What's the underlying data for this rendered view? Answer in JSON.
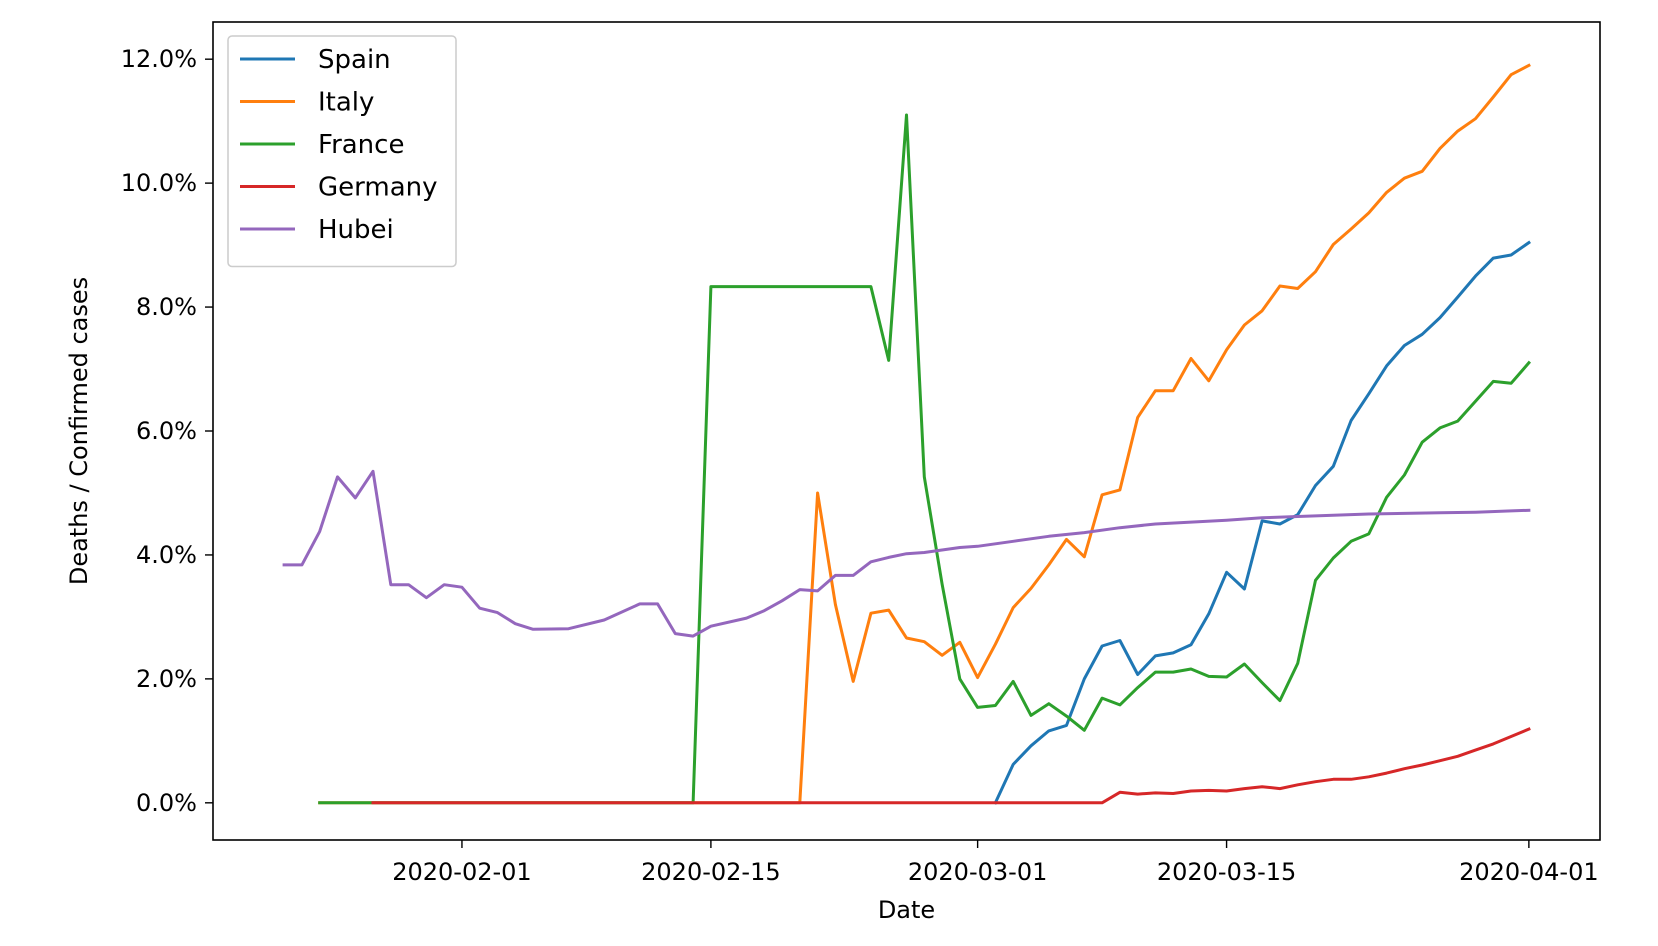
{
  "chart_data": {
    "type": "line",
    "xlabel": "Date",
    "ylabel": "Deaths / Confirmed cases",
    "x_ticks": [
      "2020-02-01",
      "2020-02-15",
      "2020-03-01",
      "2020-03-15",
      "2020-04-01"
    ],
    "y_ticks": [
      "0.0%",
      "2.0%",
      "4.0%",
      "6.0%",
      "8.0%",
      "10.0%",
      "12.0%"
    ],
    "xlim": [
      "2020-01-18",
      "2020-04-05"
    ],
    "ylim": [
      -0.6,
      12.6
    ],
    "legend_position": "top-left",
    "grid": false,
    "series": [
      {
        "name": "Spain",
        "color": "#1f77b4",
        "points": [
          [
            "2020-03-02",
            0.0
          ],
          [
            "2020-03-03",
            0.62
          ],
          [
            "2020-03-04",
            0.92
          ],
          [
            "2020-03-05",
            1.16
          ],
          [
            "2020-03-06",
            1.25
          ],
          [
            "2020-03-07",
            2.0
          ],
          [
            "2020-03-08",
            2.53
          ],
          [
            "2020-03-09",
            2.62
          ],
          [
            "2020-03-10",
            2.07
          ],
          [
            "2020-03-11",
            2.37
          ],
          [
            "2020-03-12",
            2.42
          ],
          [
            "2020-03-13",
            2.55
          ],
          [
            "2020-03-14",
            3.05
          ],
          [
            "2020-03-15",
            3.72
          ],
          [
            "2020-03-16",
            3.45
          ],
          [
            "2020-03-17",
            4.55
          ],
          [
            "2020-03-18",
            4.5
          ],
          [
            "2020-03-19",
            4.65
          ],
          [
            "2020-03-20",
            5.12
          ],
          [
            "2020-03-21",
            5.43
          ],
          [
            "2020-03-22",
            6.17
          ],
          [
            "2020-03-23",
            6.6
          ],
          [
            "2020-03-24",
            7.05
          ],
          [
            "2020-03-25",
            7.38
          ],
          [
            "2020-03-26",
            7.56
          ],
          [
            "2020-03-27",
            7.83
          ],
          [
            "2020-03-28",
            8.16
          ],
          [
            "2020-03-29",
            8.5
          ],
          [
            "2020-03-30",
            8.79
          ],
          [
            "2020-03-31",
            8.84
          ],
          [
            "2020-04-01",
            9.04
          ]
        ]
      },
      {
        "name": "Italy",
        "color": "#ff7f0e",
        "points": [
          [
            "2020-01-24",
            0.0
          ],
          [
            "2020-01-26",
            0.0
          ],
          [
            "2020-01-28",
            0.0
          ],
          [
            "2020-01-30",
            0.0
          ],
          [
            "2020-02-01",
            0.0
          ],
          [
            "2020-02-03",
            0.0
          ],
          [
            "2020-02-05",
            0.0
          ],
          [
            "2020-02-07",
            0.0
          ],
          [
            "2020-02-09",
            0.0
          ],
          [
            "2020-02-11",
            0.0
          ],
          [
            "2020-02-13",
            0.0
          ],
          [
            "2020-02-15",
            0.0
          ],
          [
            "2020-02-17",
            0.0
          ],
          [
            "2020-02-19",
            0.0
          ],
          [
            "2020-02-20",
            0.0
          ],
          [
            "2020-02-21",
            5.0
          ],
          [
            "2020-02-22",
            3.2
          ],
          [
            "2020-02-23",
            1.96
          ],
          [
            "2020-02-24",
            3.06
          ],
          [
            "2020-02-25",
            3.11
          ],
          [
            "2020-02-26",
            2.66
          ],
          [
            "2020-02-27",
            2.6
          ],
          [
            "2020-02-28",
            2.38
          ],
          [
            "2020-02-29",
            2.59
          ],
          [
            "2020-03-01",
            2.02
          ],
          [
            "2020-03-02",
            2.56
          ],
          [
            "2020-03-03",
            3.15
          ],
          [
            "2020-03-04",
            3.46
          ],
          [
            "2020-03-05",
            3.84
          ],
          [
            "2020-03-06",
            4.25
          ],
          [
            "2020-03-07",
            3.97
          ],
          [
            "2020-03-08",
            4.97
          ],
          [
            "2020-03-09",
            5.05
          ],
          [
            "2020-03-10",
            6.22
          ],
          [
            "2020-03-11",
            6.65
          ],
          [
            "2020-03-12",
            6.65
          ],
          [
            "2020-03-13",
            7.17
          ],
          [
            "2020-03-14",
            6.81
          ],
          [
            "2020-03-15",
            7.31
          ],
          [
            "2020-03-16",
            7.71
          ],
          [
            "2020-03-17",
            7.94
          ],
          [
            "2020-03-18",
            8.34
          ],
          [
            "2020-03-19",
            8.3
          ],
          [
            "2020-03-20",
            8.57
          ],
          [
            "2020-03-21",
            9.01
          ],
          [
            "2020-03-22",
            9.26
          ],
          [
            "2020-03-23",
            9.52
          ],
          [
            "2020-03-24",
            9.85
          ],
          [
            "2020-03-25",
            10.08
          ],
          [
            "2020-03-26",
            10.19
          ],
          [
            "2020-03-27",
            10.56
          ],
          [
            "2020-03-28",
            10.84
          ],
          [
            "2020-03-29",
            11.04
          ],
          [
            "2020-03-30",
            11.39
          ],
          [
            "2020-03-31",
            11.75
          ],
          [
            "2020-04-01",
            11.9
          ]
        ]
      },
      {
        "name": "France",
        "color": "#2ca02c",
        "points": [
          [
            "2020-01-24",
            0.0
          ],
          [
            "2020-01-26",
            0.0
          ],
          [
            "2020-01-28",
            0.0
          ],
          [
            "2020-01-30",
            0.0
          ],
          [
            "2020-02-01",
            0.0
          ],
          [
            "2020-02-03",
            0.0
          ],
          [
            "2020-02-05",
            0.0
          ],
          [
            "2020-02-07",
            0.0
          ],
          [
            "2020-02-09",
            0.0
          ],
          [
            "2020-02-11",
            0.0
          ],
          [
            "2020-02-13",
            0.0
          ],
          [
            "2020-02-14",
            0.0
          ],
          [
            "2020-02-15",
            8.33
          ],
          [
            "2020-02-17",
            8.33
          ],
          [
            "2020-02-19",
            8.33
          ],
          [
            "2020-02-21",
            8.33
          ],
          [
            "2020-02-23",
            8.33
          ],
          [
            "2020-02-24",
            8.33
          ],
          [
            "2020-02-25",
            7.14
          ],
          [
            "2020-02-26",
            11.1
          ],
          [
            "2020-02-27",
            5.26
          ],
          [
            "2020-02-28",
            3.53
          ],
          [
            "2020-02-29",
            2.0
          ],
          [
            "2020-03-01",
            1.54
          ],
          [
            "2020-03-02",
            1.57
          ],
          [
            "2020-03-03",
            1.96
          ],
          [
            "2020-03-04",
            1.41
          ],
          [
            "2020-03-05",
            1.6
          ],
          [
            "2020-03-06",
            1.4
          ],
          [
            "2020-03-07",
            1.17
          ],
          [
            "2020-03-08",
            1.69
          ],
          [
            "2020-03-09",
            1.58
          ],
          [
            "2020-03-10",
            1.86
          ],
          [
            "2020-03-11",
            2.11
          ],
          [
            "2020-03-12",
            2.11
          ],
          [
            "2020-03-13",
            2.16
          ],
          [
            "2020-03-14",
            2.04
          ],
          [
            "2020-03-15",
            2.03
          ],
          [
            "2020-03-16",
            2.24
          ],
          [
            "2020-03-17",
            1.94
          ],
          [
            "2020-03-18",
            1.65
          ],
          [
            "2020-03-19",
            2.25
          ],
          [
            "2020-03-20",
            3.59
          ],
          [
            "2020-03-21",
            3.95
          ],
          [
            "2020-03-22",
            4.22
          ],
          [
            "2020-03-23",
            4.34
          ],
          [
            "2020-03-24",
            4.93
          ],
          [
            "2020-03-25",
            5.29
          ],
          [
            "2020-03-26",
            5.82
          ],
          [
            "2020-03-27",
            6.05
          ],
          [
            "2020-03-28",
            6.16
          ],
          [
            "2020-03-29",
            6.48
          ],
          [
            "2020-03-30",
            6.8
          ],
          [
            "2020-03-31",
            6.77
          ],
          [
            "2020-04-01",
            7.1
          ]
        ]
      },
      {
        "name": "Germany",
        "color": "#d62728",
        "points": [
          [
            "2020-01-27",
            0.0
          ],
          [
            "2020-01-29",
            0.0
          ],
          [
            "2020-01-31",
            0.0
          ],
          [
            "2020-02-02",
            0.0
          ],
          [
            "2020-02-04",
            0.0
          ],
          [
            "2020-02-06",
            0.0
          ],
          [
            "2020-02-08",
            0.0
          ],
          [
            "2020-02-10",
            0.0
          ],
          [
            "2020-02-12",
            0.0
          ],
          [
            "2020-02-14",
            0.0
          ],
          [
            "2020-02-16",
            0.0
          ],
          [
            "2020-02-18",
            0.0
          ],
          [
            "2020-02-20",
            0.0
          ],
          [
            "2020-02-22",
            0.0
          ],
          [
            "2020-02-24",
            0.0
          ],
          [
            "2020-02-26",
            0.0
          ],
          [
            "2020-02-28",
            0.0
          ],
          [
            "2020-03-01",
            0.0
          ],
          [
            "2020-03-03",
            0.0
          ],
          [
            "2020-03-05",
            0.0
          ],
          [
            "2020-03-07",
            0.0
          ],
          [
            "2020-03-08",
            0.0
          ],
          [
            "2020-03-09",
            0.17
          ],
          [
            "2020-03-10",
            0.14
          ],
          [
            "2020-03-11",
            0.16
          ],
          [
            "2020-03-12",
            0.15
          ],
          [
            "2020-03-13",
            0.19
          ],
          [
            "2020-03-14",
            0.2
          ],
          [
            "2020-03-15",
            0.19
          ],
          [
            "2020-03-16",
            0.23
          ],
          [
            "2020-03-17",
            0.26
          ],
          [
            "2020-03-18",
            0.23
          ],
          [
            "2020-03-19",
            0.29
          ],
          [
            "2020-03-20",
            0.34
          ],
          [
            "2020-03-21",
            0.38
          ],
          [
            "2020-03-22",
            0.38
          ],
          [
            "2020-03-23",
            0.42
          ],
          [
            "2020-03-24",
            0.48
          ],
          [
            "2020-03-25",
            0.55
          ],
          [
            "2020-03-26",
            0.61
          ],
          [
            "2020-03-27",
            0.68
          ],
          [
            "2020-03-28",
            0.75
          ],
          [
            "2020-03-29",
            0.85
          ],
          [
            "2020-03-30",
            0.95
          ],
          [
            "2020-03-31",
            1.07
          ],
          [
            "2020-04-01",
            1.19
          ]
        ]
      },
      {
        "name": "Hubei",
        "color": "#9467bd",
        "points": [
          [
            "2020-01-22",
            3.84
          ],
          [
            "2020-01-23",
            3.84
          ],
          [
            "2020-01-24",
            4.38
          ],
          [
            "2020-01-25",
            5.26
          ],
          [
            "2020-01-26",
            4.92
          ],
          [
            "2020-01-27",
            5.35
          ],
          [
            "2020-01-28",
            3.52
          ],
          [
            "2020-01-29",
            3.52
          ],
          [
            "2020-01-30",
            3.31
          ],
          [
            "2020-01-31",
            3.52
          ],
          [
            "2020-02-01",
            3.48
          ],
          [
            "2020-02-02",
            3.14
          ],
          [
            "2020-02-03",
            3.07
          ],
          [
            "2020-02-04",
            2.89
          ],
          [
            "2020-02-05",
            2.8
          ],
          [
            "2020-02-07",
            2.81
          ],
          [
            "2020-02-09",
            2.95
          ],
          [
            "2020-02-11",
            3.21
          ],
          [
            "2020-02-12",
            3.21
          ],
          [
            "2020-02-13",
            2.73
          ],
          [
            "2020-02-14",
            2.69
          ],
          [
            "2020-02-15",
            2.85
          ],
          [
            "2020-02-17",
            2.98
          ],
          [
            "2020-02-18",
            3.1
          ],
          [
            "2020-02-19",
            3.26
          ],
          [
            "2020-02-20",
            3.44
          ],
          [
            "2020-02-21",
            3.42
          ],
          [
            "2020-02-22",
            3.67
          ],
          [
            "2020-02-23",
            3.67
          ],
          [
            "2020-02-24",
            3.89
          ],
          [
            "2020-02-25",
            3.96
          ],
          [
            "2020-02-26",
            4.02
          ],
          [
            "2020-02-27",
            4.04
          ],
          [
            "2020-02-29",
            4.12
          ],
          [
            "2020-03-01",
            4.14
          ],
          [
            "2020-03-03",
            4.22
          ],
          [
            "2020-03-05",
            4.3
          ],
          [
            "2020-03-07",
            4.36
          ],
          [
            "2020-03-09",
            4.44
          ],
          [
            "2020-03-11",
            4.5
          ],
          [
            "2020-03-13",
            4.53
          ],
          [
            "2020-03-15",
            4.56
          ],
          [
            "2020-03-17",
            4.6
          ],
          [
            "2020-03-19",
            4.62
          ],
          [
            "2020-03-21",
            4.64
          ],
          [
            "2020-03-23",
            4.66
          ],
          [
            "2020-03-25",
            4.67
          ],
          [
            "2020-03-27",
            4.68
          ],
          [
            "2020-03-29",
            4.69
          ],
          [
            "2020-03-31",
            4.71
          ],
          [
            "2020-04-01",
            4.72
          ]
        ]
      }
    ]
  }
}
